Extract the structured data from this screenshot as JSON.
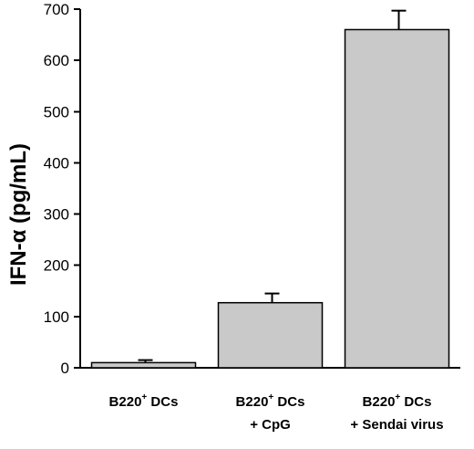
{
  "chart_data": {
    "type": "bar",
    "title": "",
    "xlabel": "",
    "ylabel": {
      "main": "IFN-α (pg/mL)"
    },
    "ylim": [
      0,
      700
    ],
    "yticks": [
      0,
      100,
      200,
      300,
      400,
      500,
      600,
      700
    ],
    "grid": false,
    "categories": [
      {
        "line1_main": "B220",
        "line1_sup": "+",
        "line1_tail": " DCs",
        "line2": ""
      },
      {
        "line1_main": "B220",
        "line1_sup": "+",
        "line1_tail": " DCs",
        "line2": "+ CpG"
      },
      {
        "line1_main": "B220",
        "line1_sup": "+",
        "line1_tail": " DCs",
        "line2": "+ Sendai virus"
      }
    ],
    "values": [
      10,
      127,
      660
    ],
    "errors": [
      5,
      18,
      37
    ],
    "colors": {
      "bar_fill": "#c9c9c9",
      "bar_edge": "#000000",
      "axis": "#000000"
    }
  }
}
